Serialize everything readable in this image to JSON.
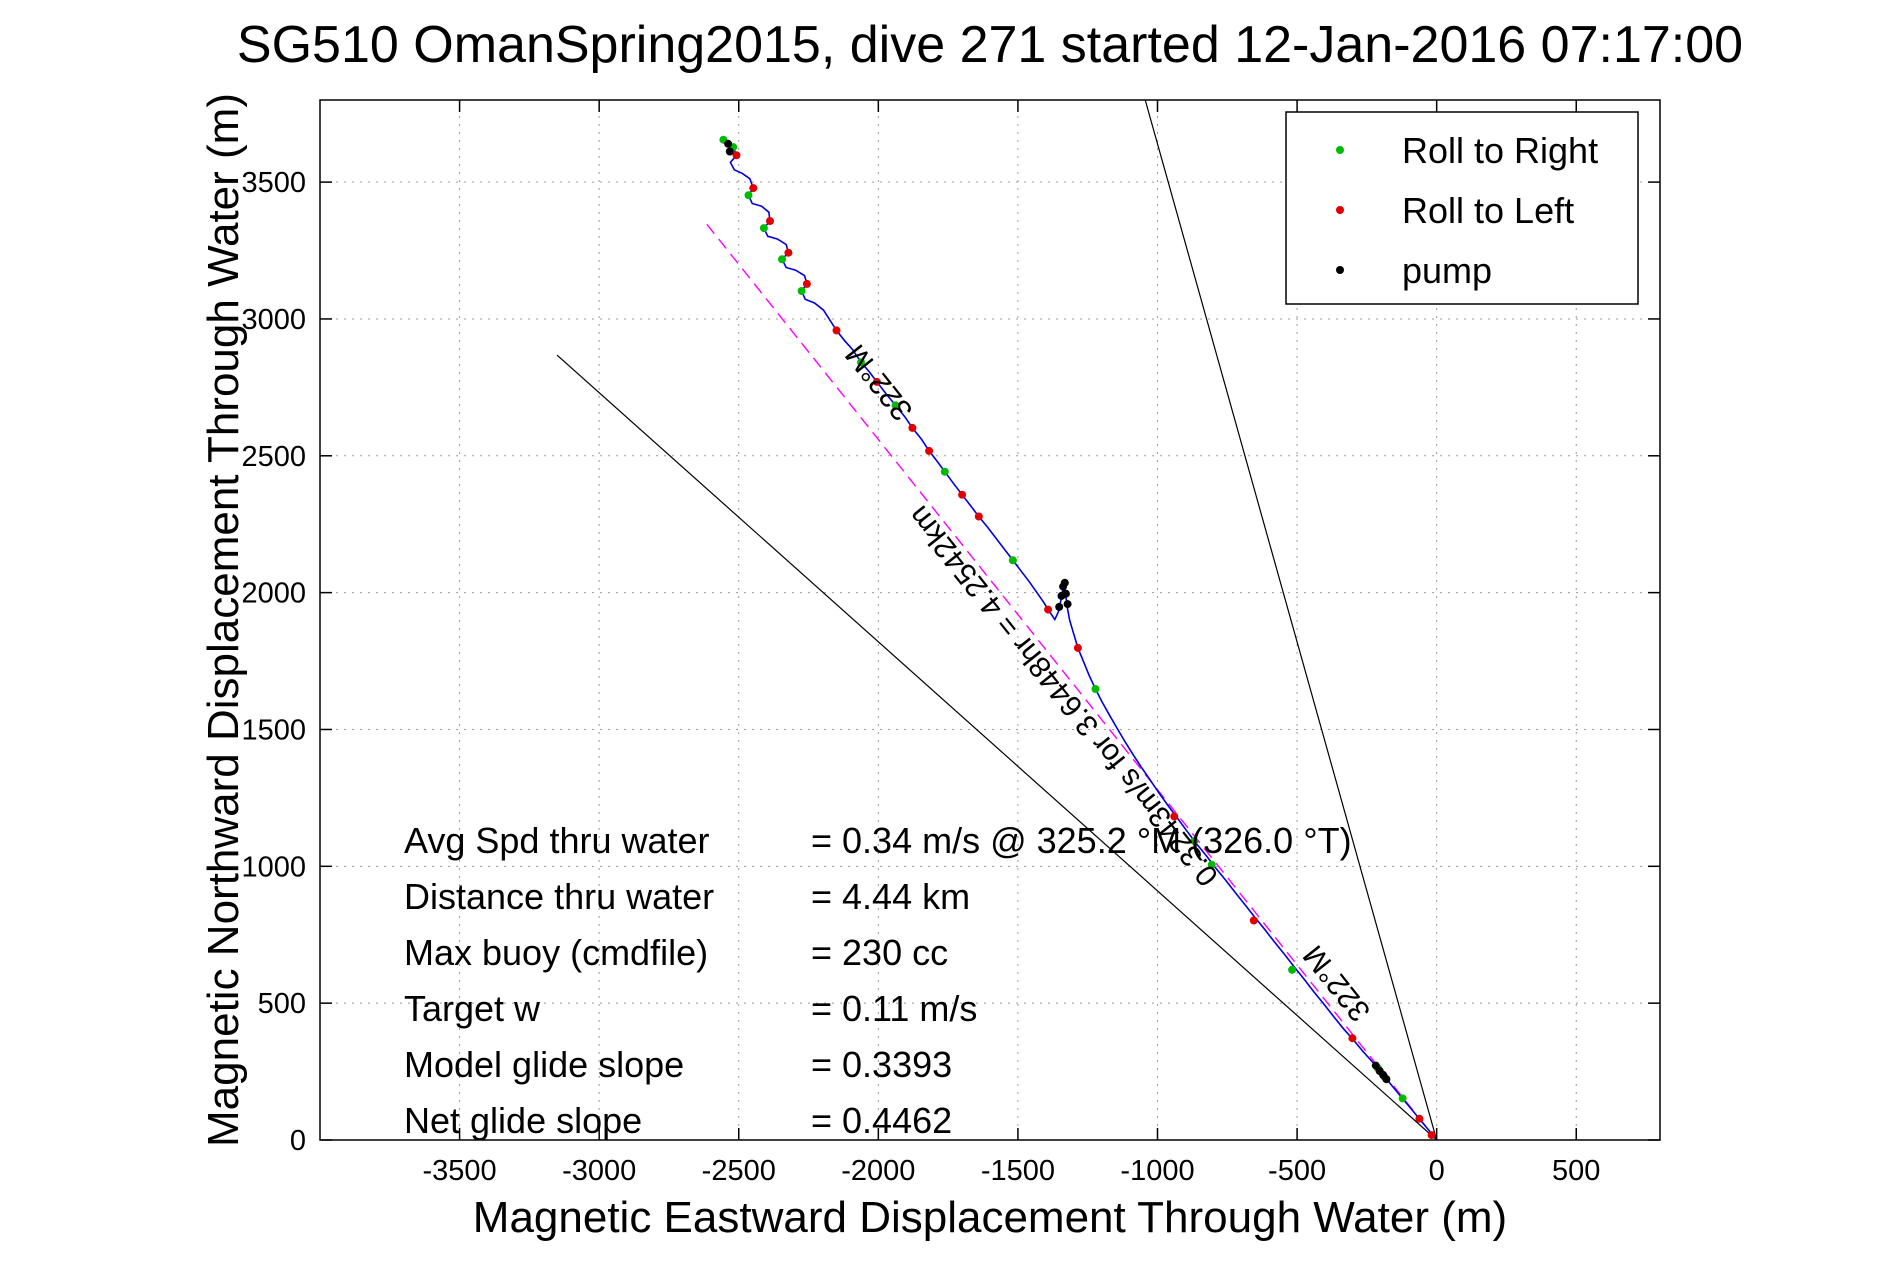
{
  "chart_data": {
    "type": "line",
    "title": "SG510 OmanSpring2015, dive 271 started 12-Jan-2016 07:17:00",
    "xlabel": "Magnetic Eastward Displacement Through Water (m)",
    "ylabel": "Magnetic Northward Displacement Through Water (m)",
    "xlim": [
      -4000,
      800
    ],
    "ylim": [
      0,
      3800
    ],
    "xticks": [
      -3500,
      -3000,
      -2500,
      -2000,
      -1500,
      -1000,
      -500,
      0,
      500
    ],
    "yticks": [
      0,
      500,
      1000,
      1500,
      2000,
      2500,
      3000,
      3500
    ],
    "grid": true,
    "track_color": "#0000dd",
    "track": [
      [
        -2550,
        3660
      ],
      [
        -2538,
        3640
      ],
      [
        -2520,
        3628
      ],
      [
        -2508,
        3598
      ],
      [
        -2530,
        3572
      ],
      [
        -2516,
        3545
      ],
      [
        -2488,
        3532
      ],
      [
        -2460,
        3512
      ],
      [
        -2448,
        3478
      ],
      [
        -2465,
        3452
      ],
      [
        -2452,
        3422
      ],
      [
        -2418,
        3412
      ],
      [
        -2392,
        3390
      ],
      [
        -2388,
        3358
      ],
      [
        -2410,
        3332
      ],
      [
        -2396,
        3302
      ],
      [
        -2362,
        3292
      ],
      [
        -2330,
        3272
      ],
      [
        -2322,
        3242
      ],
      [
        -2345,
        3218
      ],
      [
        -2330,
        3188
      ],
      [
        -2296,
        3178
      ],
      [
        -2264,
        3158
      ],
      [
        -2256,
        3128
      ],
      [
        -2275,
        3102
      ],
      [
        -2262,
        3072
      ],
      [
        -2228,
        3058
      ],
      [
        -2196,
        3032
      ],
      [
        -2175,
        2998
      ],
      [
        -2150,
        2958
      ],
      [
        -2122,
        2922
      ],
      [
        -2092,
        2888
      ],
      [
        -2062,
        2842
      ],
      [
        -2032,
        2806
      ],
      [
        -2005,
        2770
      ],
      [
        -1972,
        2726
      ],
      [
        -1938,
        2684
      ],
      [
        -1905,
        2642
      ],
      [
        -1878,
        2602
      ],
      [
        -1845,
        2560
      ],
      [
        -1818,
        2518
      ],
      [
        -1788,
        2478
      ],
      [
        -1762,
        2442
      ],
      [
        -1730,
        2398
      ],
      [
        -1700,
        2358
      ],
      [
        -1670,
        2318
      ],
      [
        -1640,
        2278
      ],
      [
        -1608,
        2238
      ],
      [
        -1578,
        2198
      ],
      [
        -1548,
        2158
      ],
      [
        -1518,
        2118
      ],
      [
        -1488,
        2078
      ],
      [
        -1458,
        2038
      ],
      [
        -1432,
        2000
      ],
      [
        -1408,
        1965
      ],
      [
        -1388,
        1932
      ],
      [
        -1368,
        1902
      ],
      [
        -1355,
        1930
      ],
      [
        -1346,
        1972
      ],
      [
        -1340,
        2008
      ],
      [
        -1335,
        2032
      ],
      [
        -1330,
        2000
      ],
      [
        -1324,
        1952
      ],
      [
        -1315,
        1900
      ],
      [
        -1300,
        1848
      ],
      [
        -1285,
        1798
      ],
      [
        -1265,
        1748
      ],
      [
        -1245,
        1698
      ],
      [
        -1222,
        1648
      ],
      [
        -1198,
        1600
      ],
      [
        -1172,
        1552
      ],
      [
        -1145,
        1505
      ],
      [
        -1118,
        1458
      ],
      [
        -1090,
        1412
      ],
      [
        -1060,
        1365
      ],
      [
        -1028,
        1318
      ],
      [
        -996,
        1270
      ],
      [
        -962,
        1222
      ],
      [
        -928,
        1175
      ],
      [
        -894,
        1128
      ],
      [
        -860,
        1082
      ],
      [
        -825,
        1038
      ],
      [
        -790,
        992
      ],
      [
        -755,
        948
      ],
      [
        -720,
        902
      ],
      [
        -685,
        858
      ],
      [
        -650,
        812
      ],
      [
        -615,
        768
      ],
      [
        -580,
        722
      ],
      [
        -545,
        678
      ],
      [
        -510,
        632
      ],
      [
        -475,
        588
      ],
      [
        -440,
        542
      ],
      [
        -405,
        498
      ],
      [
        -370,
        452
      ],
      [
        -335,
        408
      ],
      [
        -300,
        368
      ],
      [
        -265,
        325
      ],
      [
        -230,
        285
      ],
      [
        -195,
        242
      ],
      [
        -160,
        198
      ],
      [
        -125,
        155
      ],
      [
        -90,
        112
      ],
      [
        -60,
        75
      ],
      [
        -30,
        38
      ],
      [
        0,
        0
      ]
    ],
    "bearing_lines": [
      {
        "name": "fan-line-right",
        "x1": 0,
        "y1": 0,
        "x2": -1044,
        "y2": 3800,
        "color": "#000000",
        "dash": "",
        "width": 1.2
      },
      {
        "name": "fan-line-left",
        "x1": 0,
        "y1": 0,
        "x2": -3151,
        "y2": 2868,
        "color": "#000000",
        "dash": "",
        "width": 1.2
      },
      {
        "name": "bearing-322-line",
        "x1": 0,
        "y1": 0,
        "x2": -2619,
        "y2": 3352,
        "color": "#ff00ff",
        "dash": "12 7",
        "width": 1.4
      }
    ],
    "markers": [
      {
        "name": "roll-to-right",
        "color": "#00bb00",
        "size": 4,
        "points": [
          [
            -2555,
            3655
          ],
          [
            -2520,
            3628
          ],
          [
            -2465,
            3452
          ],
          [
            -2410,
            3332
          ],
          [
            -2345,
            3218
          ],
          [
            -2275,
            3102
          ],
          [
            -2062,
            2842
          ],
          [
            -1938,
            2684
          ],
          [
            -1762,
            2442
          ],
          [
            -1518,
            2118
          ],
          [
            -1222,
            1648
          ],
          [
            -868,
            1092
          ],
          [
            -806,
            1006
          ],
          [
            -518,
            622
          ],
          [
            -210,
            262
          ],
          [
            -188,
            232
          ],
          [
            -122,
            152
          ]
        ]
      },
      {
        "name": "roll-to-left",
        "color": "#e00000",
        "size": 4,
        "points": [
          [
            -2508,
            3598
          ],
          [
            -2448,
            3478
          ],
          [
            -2388,
            3358
          ],
          [
            -2322,
            3242
          ],
          [
            -2256,
            3128
          ],
          [
            -2150,
            2958
          ],
          [
            -2005,
            2770
          ],
          [
            -1878,
            2602
          ],
          [
            -1818,
            2518
          ],
          [
            -1700,
            2358
          ],
          [
            -1640,
            2278
          ],
          [
            -1392,
            1938
          ],
          [
            -1285,
            1798
          ],
          [
            -940,
            1182
          ],
          [
            -655,
            802
          ],
          [
            -302,
            372
          ],
          [
            -62,
            78
          ],
          [
            -18,
            18
          ]
        ]
      },
      {
        "name": "pump",
        "color": "#000000",
        "size": 4,
        "points": [
          [
            -2538,
            3640
          ],
          [
            -2532,
            3612
          ],
          [
            -1352,
            1948
          ],
          [
            -1344,
            1988
          ],
          [
            -1338,
            2022
          ],
          [
            -1332,
            2036
          ],
          [
            -1328,
            1996
          ],
          [
            -1322,
            1958
          ],
          [
            -218,
            272
          ],
          [
            -204,
            252
          ],
          [
            -192,
            238
          ],
          [
            -180,
            222
          ]
        ]
      }
    ],
    "annotations": [
      {
        "text": "322°M",
        "x": -1970,
        "y": 2790,
        "rotation": -128.6
      },
      {
        "text": "0.3243m/s for 3.6448hr = 4.2542km",
        "x": -1310,
        "y": 1645,
        "rotation": -128.6
      },
      {
        "text": "322°M",
        "x": -330,
        "y": 595,
        "rotation": -128.6
      }
    ],
    "legend": {
      "position": "top-right",
      "items": [
        {
          "label": "Roll to Right",
          "color": "#00bb00"
        },
        {
          "label": "Roll to Left",
          "color": "#e00000"
        },
        {
          "label": "pump",
          "color": "#000000"
        }
      ]
    },
    "stats": {
      "rows": [
        {
          "label": "Avg Spd thru water",
          "value": "=  0.34 m/s @ 325.2 °M (326.0 °T)"
        },
        {
          "label": "Distance thru water",
          "value": "=  4.44 km"
        },
        {
          "label": "Max buoy (cmdfile)",
          "value": "= 230 cc"
        },
        {
          "label": "Target w",
          "value": "= 0.11 m/s"
        },
        {
          "label": "Model glide slope",
          "value": "= 0.3393"
        },
        {
          "label": "Net glide slope",
          "value": "= 0.4462"
        }
      ]
    }
  }
}
